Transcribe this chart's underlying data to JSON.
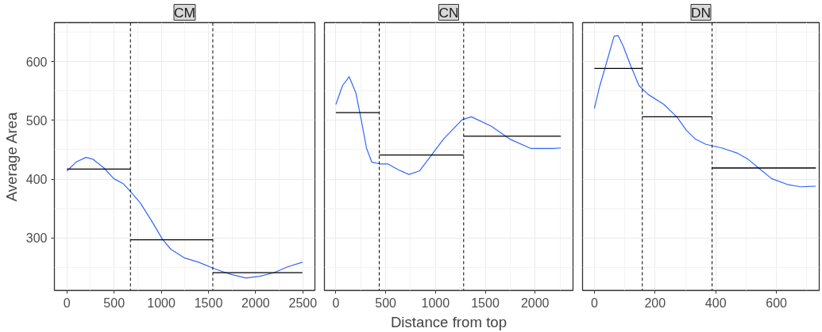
{
  "chart_data": [
    {
      "type": "line",
      "title": "CM",
      "ylabel": "Average Area",
      "xlim": [
        -133,
        2628
      ],
      "ylim": [
        211,
        666
      ],
      "xticks": [
        0,
        500,
        1000,
        1500,
        2000,
        2500
      ],
      "yticks": [
        300,
        400,
        500,
        600
      ],
      "grid": true,
      "series": [
        {
          "color": "#3366ff",
          "x": [
            0,
            97,
            201,
            274,
            392,
            496,
            599,
            673,
            776,
            894,
            1012,
            1100,
            1248,
            1395,
            1543,
            1720,
            1897,
            2044,
            2192,
            2339,
            2496
          ],
          "values": [
            414,
            429,
            437,
            434,
            419,
            401,
            392,
            379,
            360,
            330,
            298,
            281,
            266,
            259,
            249,
            239,
            232,
            235,
            241,
            251,
            259
          ]
        },
        {
          "color": "#000000",
          "x": [
            0,
            673
          ],
          "values": [
            417,
            417
          ]
        },
        {
          "color": "#000000",
          "x": [
            673,
            1546
          ],
          "values": [
            297,
            297
          ]
        },
        {
          "color": "#000000",
          "x": [
            1546,
            2496
          ],
          "values": [
            241,
            241
          ]
        }
      ],
      "ref_lines": [
        {
          "axis": "x",
          "value": 673,
          "line_style": "dashed",
          "color": "#000000"
        },
        {
          "axis": "x",
          "value": 1546,
          "line_style": "dashed",
          "color": "#000000"
        }
      ]
    },
    {
      "type": "line",
      "title": "CN",
      "xlabel": "Distance from top",
      "xlim": [
        -115,
        2381
      ],
      "ylim": [
        211,
        666
      ],
      "xticks": [
        0,
        500,
        1000,
        1500,
        2000
      ],
      "yticks": [
        300,
        400,
        500,
        600
      ],
      "grid": true,
      "tick_labels": "x",
      "series": [
        {
          "color": "#3366ff",
          "x": [
            0,
            67,
            133,
            200,
            253,
            307,
            360,
            440,
            520,
            627,
            733,
            840,
            947,
            1080,
            1267,
            1360,
            1560,
            1747,
            1960,
            2173,
            2259
          ],
          "values": [
            527,
            559,
            574,
            547,
            502,
            453,
            429,
            426,
            426,
            416,
            408,
            414,
            438,
            468,
            501,
            506,
            490,
            468,
            452,
            452,
            453
          ]
        },
        {
          "color": "#000000",
          "x": [
            0,
            435
          ],
          "values": [
            513,
            513
          ]
        },
        {
          "color": "#000000",
          "x": [
            435,
            1283
          ],
          "values": [
            441,
            441
          ]
        },
        {
          "color": "#000000",
          "x": [
            1283,
            2259
          ],
          "values": [
            473,
            473
          ]
        }
      ],
      "ref_lines": [
        {
          "axis": "x",
          "value": 435,
          "line_style": "dashed",
          "color": "#000000"
        },
        {
          "axis": "x",
          "value": 1283,
          "line_style": "dashed",
          "color": "#000000"
        }
      ]
    },
    {
      "type": "line",
      "title": "DN",
      "xlim": [
        -39,
        741
      ],
      "ylim": [
        211,
        666
      ],
      "xticks": [
        0,
        200,
        400,
        600
      ],
      "yticks": [
        300,
        400,
        500,
        600
      ],
      "grid": true,
      "tick_labels": "x",
      "series": [
        {
          "color": "#3366ff",
          "x": [
            0,
            17,
            39,
            65,
            78,
            95,
            121,
            147,
            177,
            229,
            273,
            303,
            333,
            368,
            420,
            472,
            506,
            541,
            584,
            636,
            680,
            730
          ],
          "values": [
            520,
            557,
            596,
            643,
            644,
            626,
            591,
            559,
            544,
            527,
            505,
            483,
            468,
            459,
            453,
            444,
            434,
            419,
            401,
            391,
            387,
            388
          ]
        },
        {
          "color": "#000000",
          "x": [
            0,
            158
          ],
          "values": [
            588,
            588
          ]
        },
        {
          "color": "#000000",
          "x": [
            158,
            388
          ],
          "values": [
            506,
            506
          ]
        },
        {
          "color": "#000000",
          "x": [
            388,
            730
          ],
          "values": [
            419,
            419
          ]
        }
      ],
      "ref_lines": [
        {
          "axis": "x",
          "value": 158,
          "line_style": "dashed",
          "color": "#000000"
        },
        {
          "axis": "x",
          "value": 388,
          "line_style": "dashed",
          "color": "#000000"
        }
      ]
    }
  ]
}
